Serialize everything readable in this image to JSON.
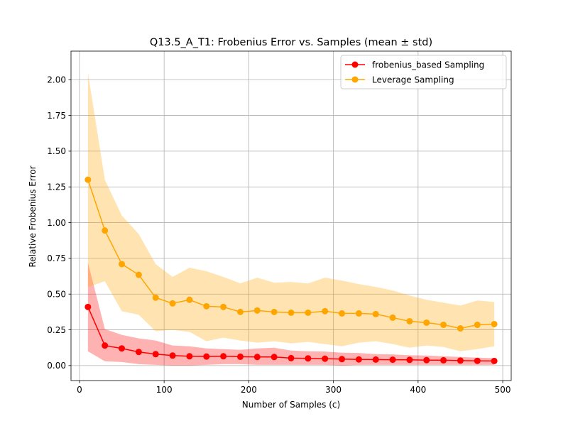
{
  "chart_data": {
    "type": "line",
    "title": "Q13.5_A_T1: Frobenius Error vs. Samples (mean ± std)",
    "xlabel": "Number of Samples (c)",
    "ylabel": "Relative Frobenius Error",
    "xlim": [
      -10,
      510
    ],
    "ylim": [
      -0.105,
      2.2
    ],
    "xticks": [
      0,
      100,
      200,
      300,
      400,
      500
    ],
    "xtick_labels": [
      "0",
      "100",
      "200",
      "300",
      "400",
      "500"
    ],
    "yticks": [
      0.0,
      0.25,
      0.5,
      0.75,
      1.0,
      1.25,
      1.5,
      1.75,
      2.0
    ],
    "ytick_labels": [
      "0.00",
      "0.25",
      "0.50",
      "0.75",
      "1.00",
      "1.25",
      "1.50",
      "1.75",
      "2.00"
    ],
    "grid": true,
    "legend_position": "upper right",
    "x": [
      10,
      30,
      50,
      70,
      90,
      110,
      130,
      150,
      170,
      190,
      210,
      230,
      250,
      270,
      290,
      310,
      330,
      350,
      370,
      390,
      410,
      430,
      450,
      470,
      490
    ],
    "series": [
      {
        "name": "frobenius_based Sampling",
        "color": "#ff0000",
        "values": [
          0.41,
          0.14,
          0.12,
          0.095,
          0.08,
          0.07,
          0.065,
          0.063,
          0.065,
          0.062,
          0.06,
          0.06,
          0.052,
          0.05,
          0.048,
          0.045,
          0.043,
          0.042,
          0.041,
          0.04,
          0.038,
          0.037,
          0.035,
          0.033,
          0.032
        ],
        "upper": [
          0.72,
          0.255,
          0.215,
          0.19,
          0.175,
          0.14,
          0.135,
          0.12,
          0.115,
          0.11,
          0.12,
          0.125,
          0.105,
          0.1,
          0.098,
          0.09,
          0.088,
          0.08,
          0.078,
          0.072,
          0.07,
          0.065,
          0.06,
          0.055,
          0.052
        ],
        "lower": [
          0.1,
          0.03,
          0.025,
          0.01,
          0.005,
          0.0,
          0.0,
          0.005,
          0.01,
          0.01,
          0.005,
          0.005,
          0.005,
          0.005,
          0.005,
          0.0,
          0.005,
          0.005,
          0.005,
          0.005,
          0.005,
          0.005,
          0.005,
          0.005,
          0.005
        ]
      },
      {
        "name": "Leverage Sampling",
        "color": "#ffa500",
        "values": [
          1.3,
          0.945,
          0.71,
          0.635,
          0.475,
          0.435,
          0.46,
          0.415,
          0.41,
          0.375,
          0.385,
          0.375,
          0.37,
          0.37,
          0.38,
          0.365,
          0.365,
          0.36,
          0.335,
          0.31,
          0.3,
          0.285,
          0.26,
          0.285,
          0.29
        ],
        "upper": [
          2.05,
          1.3,
          1.05,
          0.92,
          0.71,
          0.62,
          0.685,
          0.66,
          0.62,
          0.575,
          0.615,
          0.58,
          0.585,
          0.575,
          0.615,
          0.595,
          0.57,
          0.55,
          0.525,
          0.49,
          0.46,
          0.44,
          0.42,
          0.455,
          0.445
        ],
        "lower": [
          0.55,
          0.59,
          0.38,
          0.355,
          0.24,
          0.25,
          0.235,
          0.17,
          0.195,
          0.175,
          0.16,
          0.17,
          0.155,
          0.165,
          0.15,
          0.135,
          0.16,
          0.17,
          0.15,
          0.125,
          0.14,
          0.13,
          0.1,
          0.115,
          0.135
        ]
      }
    ]
  }
}
